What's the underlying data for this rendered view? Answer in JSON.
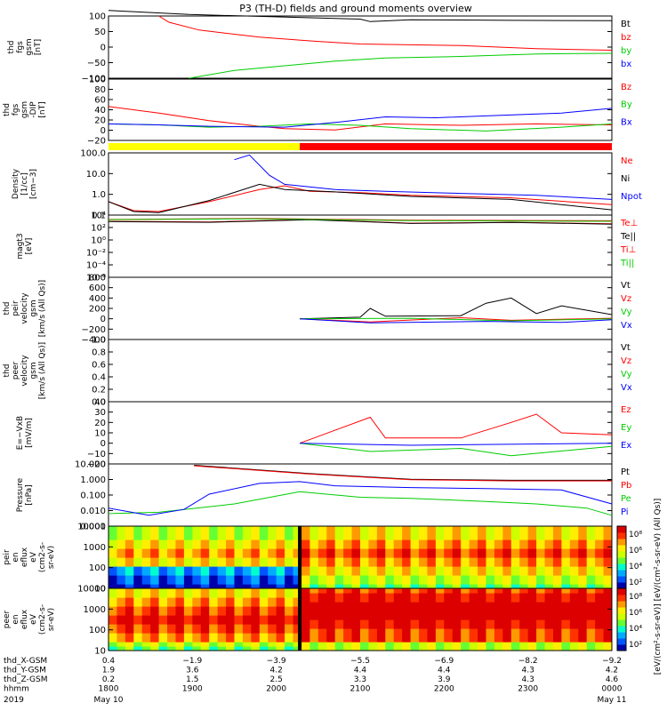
{
  "title": "P3 (TH-D) fields and ground moments overview",
  "date_labels": {
    "year": "2019",
    "start_date": "May 10",
    "end_date": "May 11"
  },
  "colors": {
    "black": "#000000",
    "red": "#ff0000",
    "green": "#00cc00",
    "blue": "#0000ff",
    "yellow": "#ffff00"
  },
  "chart_data": [
    {
      "type": "line",
      "ylabel": "thd\nfgs\ngsm\n[nT]",
      "ylim": [
        -100,
        100
      ],
      "yticks": [
        "100",
        "50",
        "0",
        "−50",
        "−100"
      ],
      "scale": "linear",
      "series": [
        {
          "name": "Bt",
          "color": "black",
          "points": [
            [
              0,
              118
            ],
            [
              0.16,
              105
            ],
            [
              0.5,
              90
            ],
            [
              0.52,
              82
            ],
            [
              0.6,
              88
            ],
            [
              0.7,
              87
            ],
            [
              0.8,
              86
            ],
            [
              1.0,
              85
            ]
          ]
        },
        {
          "name": "bz",
          "color": "red",
          "points": [
            [
              0.1,
              100
            ],
            [
              0.12,
              80
            ],
            [
              0.18,
              55
            ],
            [
              0.3,
              32
            ],
            [
              0.4,
              20
            ],
            [
              0.5,
              10
            ],
            [
              0.7,
              5
            ],
            [
              0.85,
              -5
            ],
            [
              1.0,
              -10
            ]
          ]
        },
        {
          "name": "by",
          "color": "green",
          "points": [
            [
              0.16,
              -100
            ],
            [
              0.25,
              -75
            ],
            [
              0.35,
              -60
            ],
            [
              0.45,
              -45
            ],
            [
              0.55,
              -35
            ],
            [
              0.7,
              -30
            ],
            [
              0.85,
              -22
            ],
            [
              1.0,
              -20
            ]
          ]
        },
        {
          "name": "bx",
          "color": "blue",
          "points": []
        }
      ]
    },
    {
      "type": "line",
      "ylabel": "thd\nfgs\ngsm\n-DIP\n[nT]",
      "ylim": [
        -30,
        100
      ],
      "yticks": [
        "100",
        "80",
        "60",
        "40",
        "20",
        "0",
        "−20"
      ],
      "scale": "linear",
      "series": [
        {
          "name": "Bz",
          "color": "red",
          "points": [
            [
              0,
              42
            ],
            [
              0.1,
              28
            ],
            [
              0.2,
              12
            ],
            [
              0.3,
              0
            ],
            [
              0.35,
              -5
            ],
            [
              0.45,
              -8
            ],
            [
              0.55,
              5
            ],
            [
              0.7,
              2
            ],
            [
              0.85,
              5
            ],
            [
              1.0,
              3
            ]
          ]
        },
        {
          "name": "By",
          "color": "green",
          "points": [
            [
              0,
              5
            ],
            [
              0.1,
              3
            ],
            [
              0.2,
              -2
            ],
            [
              0.3,
              0
            ],
            [
              0.4,
              5
            ],
            [
              0.5,
              2
            ],
            [
              0.6,
              -5
            ],
            [
              0.75,
              -10
            ],
            [
              0.9,
              -2
            ],
            [
              1.0,
              5
            ]
          ]
        },
        {
          "name": "Bx",
          "color": "blue",
          "points": [
            [
              0,
              5
            ],
            [
              0.1,
              3
            ],
            [
              0.2,
              0
            ],
            [
              0.35,
              -2
            ],
            [
              0.45,
              8
            ],
            [
              0.55,
              20
            ],
            [
              0.65,
              18
            ],
            [
              0.75,
              22
            ],
            [
              0.9,
              28
            ],
            [
              1.0,
              38
            ]
          ]
        }
      ]
    },
    {
      "type": "line",
      "ylabel": "Density\n[1/cc]\n[cm−3]",
      "ylim": [
        0.05,
        200
      ],
      "yticks": [
        "100.0",
        "10.0",
        "1.0",
        "0.1"
      ],
      "scale": "log",
      "series": [
        {
          "name": "Ne",
          "color": "red",
          "points": [
            [
              0,
              0.3
            ],
            [
              0.05,
              0.09
            ],
            [
              0.1,
              0.08
            ],
            [
              0.2,
              0.3
            ],
            [
              0.3,
              1.5
            ],
            [
              0.35,
              2.5
            ],
            [
              0.4,
              1.2
            ],
            [
              0.5,
              1.0
            ],
            [
              0.6,
              0.7
            ],
            [
              0.8,
              0.5
            ],
            [
              1.0,
              0.2
            ]
          ]
        },
        {
          "name": "Ni",
          "color": "black",
          "points": [
            [
              0,
              0.3
            ],
            [
              0.05,
              0.08
            ],
            [
              0.1,
              0.07
            ],
            [
              0.2,
              0.35
            ],
            [
              0.3,
              3
            ],
            [
              0.35,
              1.5
            ],
            [
              0.45,
              1.1
            ],
            [
              0.6,
              0.6
            ],
            [
              0.8,
              0.4
            ],
            [
              1.0,
              0.1
            ]
          ]
        },
        {
          "name": "Npot",
          "color": "blue",
          "points": [
            [
              0.25,
              80
            ],
            [
              0.28,
              150
            ],
            [
              0.32,
              10
            ],
            [
              0.35,
              3
            ],
            [
              0.45,
              1.5
            ],
            [
              0.55,
              1.2
            ],
            [
              0.7,
              0.9
            ],
            [
              0.85,
              0.7
            ],
            [
              1.0,
              0.4
            ]
          ]
        }
      ]
    },
    {
      "type": "line",
      "ylabel": "magt3\n[eV]",
      "ylim": [
        1e-06,
        10000.0
      ],
      "yticks": [
        "10⁴",
        "10²",
        "10⁰",
        "10⁻²",
        "10⁻⁴",
        "10⁻⁶"
      ],
      "scale": "log",
      "series": [
        {
          "name": "Te⊥",
          "color": "red",
          "points": [
            [
              0,
              1000
            ],
            [
              0.2,
              800
            ],
            [
              0.4,
              2000
            ],
            [
              0.6,
              500
            ],
            [
              0.8,
              700
            ],
            [
              1.0,
              400
            ]
          ]
        },
        {
          "name": "Te||",
          "color": "black",
          "points": [
            [
              0,
              900
            ],
            [
              0.2,
              700
            ],
            [
              0.4,
              1800
            ],
            [
              0.6,
              450
            ],
            [
              0.8,
              650
            ],
            [
              1.0,
              350
            ]
          ]
        },
        {
          "name": "Ti⊥",
          "color": "red",
          "points": [
            [
              0,
              2000
            ],
            [
              0.3,
              3000
            ],
            [
              0.6,
              1500
            ],
            [
              1.0,
              1200
            ]
          ]
        },
        {
          "name": "Ti||",
          "color": "green",
          "points": [
            [
              0,
              1800
            ],
            [
              0.3,
              2500
            ],
            [
              0.6,
              1300
            ],
            [
              1.0,
              1000
            ]
          ]
        }
      ]
    },
    {
      "type": "line",
      "ylabel": "thd\npeir\nvelocity\ngsm\n[km/s (All Qs)]",
      "ylim": [
        -400,
        800
      ],
      "yticks": [
        "800",
        "600",
        "400",
        "200",
        "0",
        "−200",
        "−400"
      ],
      "scale": "linear",
      "series": [
        {
          "name": "Vt",
          "color": "black",
          "points": [
            [
              0.38,
              0
            ],
            [
              0.5,
              30
            ],
            [
              0.52,
              200
            ],
            [
              0.55,
              50
            ],
            [
              0.7,
              60
            ],
            [
              0.75,
              300
            ],
            [
              0.8,
              400
            ],
            [
              0.85,
              100
            ],
            [
              0.9,
              250
            ],
            [
              1.0,
              80
            ]
          ]
        },
        {
          "name": "Vz",
          "color": "red",
          "points": [
            [
              0.38,
              0
            ],
            [
              0.52,
              -60
            ],
            [
              0.7,
              20
            ],
            [
              0.8,
              -30
            ],
            [
              1.0,
              10
            ]
          ]
        },
        {
          "name": "Vy",
          "color": "green",
          "points": [
            [
              0.38,
              0
            ],
            [
              0.6,
              10
            ],
            [
              0.8,
              -40
            ],
            [
              1.0,
              0
            ]
          ]
        },
        {
          "name": "Vx",
          "color": "blue",
          "points": [
            [
              0.38,
              0
            ],
            [
              0.52,
              -80
            ],
            [
              0.75,
              -50
            ],
            [
              0.9,
              -70
            ],
            [
              1.0,
              -20
            ]
          ]
        }
      ]
    },
    {
      "type": "line",
      "ylabel": "thd\npeer\nvelocity\ngsm\n[km/s (All Qs)]",
      "ylim": [
        0,
        1
      ],
      "yticks": [
        "1.0",
        "0.8",
        "0.6",
        "0.4",
        "0.2",
        "0.0"
      ],
      "scale": "linear",
      "series": [
        {
          "name": "Vt",
          "color": "black",
          "points": []
        },
        {
          "name": "Vz",
          "color": "red",
          "points": []
        },
        {
          "name": "Vy",
          "color": "green",
          "points": []
        },
        {
          "name": "Vx",
          "color": "blue",
          "points": []
        }
      ]
    },
    {
      "type": "line",
      "ylabel": "E=−VxB\n[mV/m]",
      "ylim": [
        -20,
        40
      ],
      "yticks": [
        "40",
        "30",
        "20",
        "10",
        "0",
        "−10",
        "−20"
      ],
      "scale": "linear",
      "series": [
        {
          "name": "Ez",
          "color": "red",
          "points": [
            [
              0.38,
              0
            ],
            [
              0.52,
              25
            ],
            [
              0.55,
              5
            ],
            [
              0.7,
              5
            ],
            [
              0.8,
              20
            ],
            [
              0.85,
              28
            ],
            [
              0.9,
              10
            ],
            [
              1.0,
              8
            ]
          ]
        },
        {
          "name": "Ey",
          "color": "green",
          "points": [
            [
              0.38,
              0
            ],
            [
              0.52,
              -8
            ],
            [
              0.7,
              -5
            ],
            [
              0.8,
              -12
            ],
            [
              1.0,
              -3
            ]
          ]
        },
        {
          "name": "Ex",
          "color": "blue",
          "points": [
            [
              0.38,
              0
            ],
            [
              0.6,
              -2
            ],
            [
              1.0,
              0
            ]
          ]
        }
      ]
    },
    {
      "type": "line",
      "ylabel": "Pressure\n[nPa]",
      "ylim": [
        0.0005,
        15
      ],
      "yticks": [
        "10.000",
        "1.000",
        "0.100",
        "0.010",
        "0.001"
      ],
      "scale": "log",
      "series": [
        {
          "name": "Pt",
          "color": "black",
          "points": [
            [
              0.17,
              12
            ],
            [
              0.4,
              3
            ],
            [
              0.6,
              1.2
            ],
            [
              0.8,
              1.0
            ],
            [
              1.0,
              1.0
            ]
          ]
        },
        {
          "name": "Pb",
          "color": "red",
          "points": [
            [
              0.17,
              11
            ],
            [
              0.4,
              2.8
            ],
            [
              0.6,
              1.1
            ],
            [
              0.8,
              0.9
            ],
            [
              1.0,
              0.9
            ]
          ]
        },
        {
          "name": "Pe",
          "color": "green",
          "points": [
            [
              0,
              0.004
            ],
            [
              0.1,
              0.005
            ],
            [
              0.25,
              0.02
            ],
            [
              0.38,
              0.15
            ],
            [
              0.5,
              0.06
            ],
            [
              0.6,
              0.05
            ],
            [
              0.75,
              0.03
            ],
            [
              0.85,
              0.02
            ],
            [
              0.95,
              0.01
            ],
            [
              1.0,
              0.003
            ]
          ]
        },
        {
          "name": "Pi",
          "color": "blue",
          "points": [
            [
              0,
              0.01
            ],
            [
              0.08,
              0.003
            ],
            [
              0.15,
              0.008
            ],
            [
              0.2,
              0.1
            ],
            [
              0.3,
              0.6
            ],
            [
              0.38,
              0.8
            ],
            [
              0.45,
              0.4
            ],
            [
              0.6,
              0.3
            ],
            [
              0.75,
              0.25
            ],
            [
              0.9,
              0.2
            ],
            [
              1.0,
              0.02
            ]
          ]
        }
      ]
    },
    {
      "type": "heatmap",
      "ylabel": "thd\npeir\nen\neflux\neV\n(cm2-s-\nsr-eV)",
      "ylim": [
        5,
        30000
      ],
      "yticks": [
        "10000",
        "1000",
        "100",
        "10"
      ],
      "scale": "log",
      "colorbar_ticks": [
        "10⁸",
        "10⁶",
        "10⁴",
        "10²"
      ]
    },
    {
      "type": "heatmap",
      "ylabel": "thd\npeer\nen\neflux\neV\n(cm2-s-\nsr-eV)",
      "ylim": [
        5,
        30000
      ],
      "yticks": [
        "10000",
        "1000",
        "100",
        "10"
      ],
      "scale": "log",
      "colorbar_ticks": [
        "10⁸",
        "10⁶",
        "10⁴",
        "10²"
      ]
    }
  ],
  "colorbar_label": "[eV/(cm²-s-sr-eV)] [eV/(cm²-s-sr-eV) (All Qs)]",
  "x_axis": {
    "rows": [
      {
        "label": "thd_X-GSM",
        "values": [
          "0.4",
          "−1.9",
          "−3.9",
          "−5.5",
          "−6.9",
          "−8.2",
          "−9.2"
        ]
      },
      {
        "label": "thd_Y-GSM",
        "values": [
          "1.9",
          "3.6",
          "4.2",
          "4.4",
          "4.4",
          "4.3",
          "4.2"
        ]
      },
      {
        "label": "thd_Z-GSM",
        "values": [
          "0.2",
          "1.5",
          "2.5",
          "3.3",
          "3.9",
          "4.3",
          "4.6"
        ]
      },
      {
        "label": "hhmm",
        "values": [
          "1800",
          "1900",
          "2000",
          "2100",
          "2200",
          "2300",
          "0000"
        ]
      }
    ]
  },
  "mode_bar": {
    "segments": [
      {
        "from": 0,
        "to": 0.38,
        "color": "yellow"
      },
      {
        "from": 0.38,
        "to": 1.0,
        "color": "red"
      }
    ]
  }
}
